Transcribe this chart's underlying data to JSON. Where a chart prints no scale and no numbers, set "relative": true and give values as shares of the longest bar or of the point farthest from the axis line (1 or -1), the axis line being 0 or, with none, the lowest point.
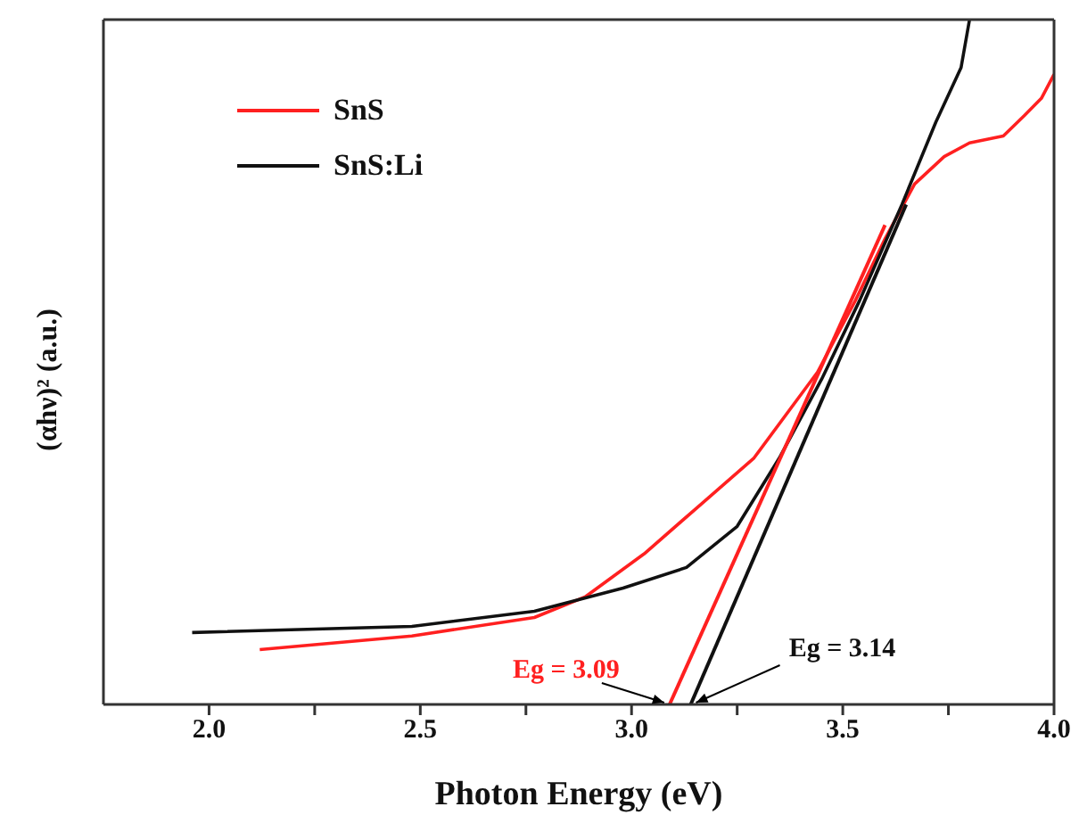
{
  "chart_data": {
    "type": "line",
    "xlabel": "Photon Energy (eV)",
    "ylabel": "(αhν)² (a.u.)",
    "relative": true,
    "xlim": [
      1.75,
      4.0
    ],
    "xticks": [
      {
        "value": 2,
        "label": "2.0"
      },
      {
        "value": 2.25,
        "label": null
      },
      {
        "value": 2.5,
        "label": "2.5"
      },
      {
        "value": 2.75,
        "label": null
      },
      {
        "value": 3,
        "label": "3.0"
      },
      {
        "value": 3.25,
        "label": null
      },
      {
        "value": 3.5,
        "label": "3.5"
      },
      {
        "value": 3.75,
        "label": null
      },
      {
        "value": 4,
        "label": "4.0"
      }
    ],
    "legend": "top left",
    "grid": false,
    "marker": "none",
    "line_style": "solid",
    "series": [
      {
        "name": "SnS",
        "color": "#ff2020",
        "x": [
          2.12,
          2.48,
          2.77,
          2.89,
          3.03,
          3.16,
          3.29,
          3.44,
          3.53,
          3.6,
          3.67,
          3.74,
          3.8,
          3.88,
          3.93,
          3.97,
          4.0
        ],
        "values": [
          0.08,
          0.1,
          0.127,
          0.157,
          0.22,
          0.29,
          0.36,
          0.485,
          0.59,
          0.68,
          0.76,
          0.8,
          0.82,
          0.83,
          0.86,
          0.885,
          0.92
        ]
      },
      {
        "name": "SnS:Li",
        "color": "#111111",
        "x": [
          1.96,
          2.48,
          2.77,
          2.98,
          3.13,
          3.25,
          3.35,
          3.45,
          3.54,
          3.64,
          3.72,
          3.78,
          3.8
        ],
        "values": [
          0.105,
          0.114,
          0.136,
          0.17,
          0.2,
          0.26,
          0.36,
          0.475,
          0.59,
          0.73,
          0.85,
          0.93,
          1.0
        ]
      },
      {
        "type": "line",
        "color": "#ff2020",
        "x": [
          3.09,
          3.6
        ],
        "values": [
          0,
          0.7
        ]
      },
      {
        "type": "line",
        "color": "#111111",
        "x": [
          3.14,
          3.65
        ],
        "values": [
          0,
          0.73
        ]
      }
    ],
    "annotations": [
      {
        "text": "Eg = 3.09",
        "x": 3.09,
        "y": 0
      },
      {
        "text": "Eg = 3.14",
        "x": 3.14,
        "y": 0
      }
    ]
  }
}
